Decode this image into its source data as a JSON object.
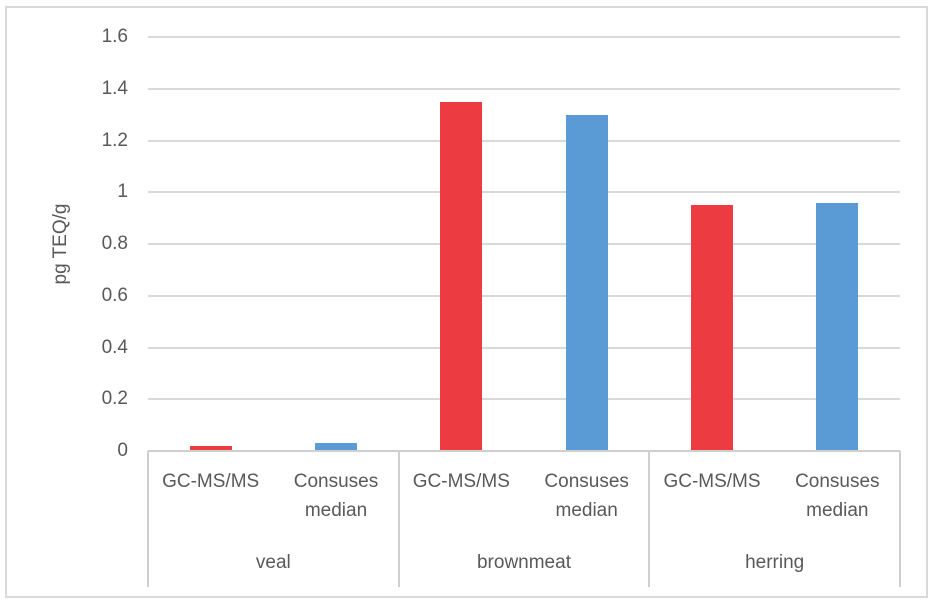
{
  "chart_data": {
    "type": "bar",
    "title": "",
    "xlabel": "",
    "ylabel": "pg TEQ/g",
    "ylim": [
      0,
      1.6
    ],
    "ytick_values": [
      0,
      0.2,
      0.4,
      0.6,
      0.8,
      1,
      1.2,
      1.4,
      1.6
    ],
    "ytick_labels": [
      "0",
      "0.2",
      "0.4",
      "0.6",
      "0.8",
      "1",
      "1.2",
      "1.4",
      "1.6"
    ],
    "groups": [
      "veal",
      "brownmeat",
      "herring"
    ],
    "series": [
      {
        "name": "GC-MS/MS",
        "color": "#EC3B41",
        "values": [
          0.02,
          1.35,
          0.95
        ]
      },
      {
        "name": "Consuses median",
        "color": "#5B9BD5",
        "values": [
          0.03,
          1.3,
          0.96
        ]
      }
    ],
    "grid": true,
    "legend_position": "none",
    "colors": {
      "gridline": "#D9D9D9",
      "axis_line": "#CFCFCF",
      "text": "#595959",
      "border": "#D9D9D9",
      "background": "#FFFFFF"
    }
  }
}
